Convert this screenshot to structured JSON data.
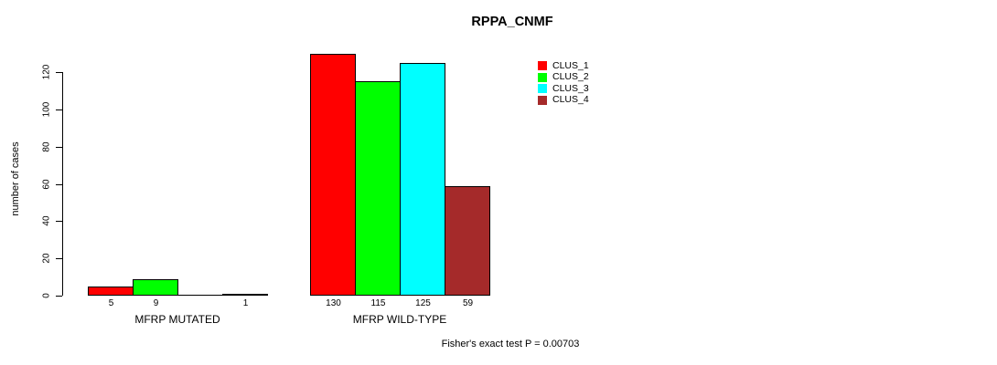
{
  "chart_data": {
    "type": "bar",
    "title": "RPPA_CNMF",
    "ylabel": "number of cases",
    "xlabel": "",
    "categories": [
      "MFRP MUTATED",
      "MFRP WILD-TYPE"
    ],
    "series": [
      {
        "name": "CLUS_1",
        "color": "#FF0000",
        "values": [
          5,
          130
        ]
      },
      {
        "name": "CLUS_2",
        "color": "#00FF00",
        "values": [
          9,
          115
        ]
      },
      {
        "name": "CLUS_3",
        "color": "#00FFFF",
        "values": [
          0,
          125
        ]
      },
      {
        "name": "CLUS_4",
        "color": "#A52A2A",
        "values": [
          1,
          59
        ]
      }
    ],
    "bar_value_labels": [
      [
        5,
        9,
        null,
        1
      ],
      [
        130,
        115,
        125,
        59
      ]
    ],
    "yticks": [
      0,
      20,
      40,
      60,
      80,
      100,
      120
    ],
    "ylim": [
      0,
      130
    ],
    "grid": false,
    "legend_position": "right",
    "legend_entries": [
      "CLUS_1",
      "CLUS_2",
      "CLUS_3",
      "CLUS_4"
    ],
    "annotation": "Fisher's exact test P = 0.00703"
  }
}
